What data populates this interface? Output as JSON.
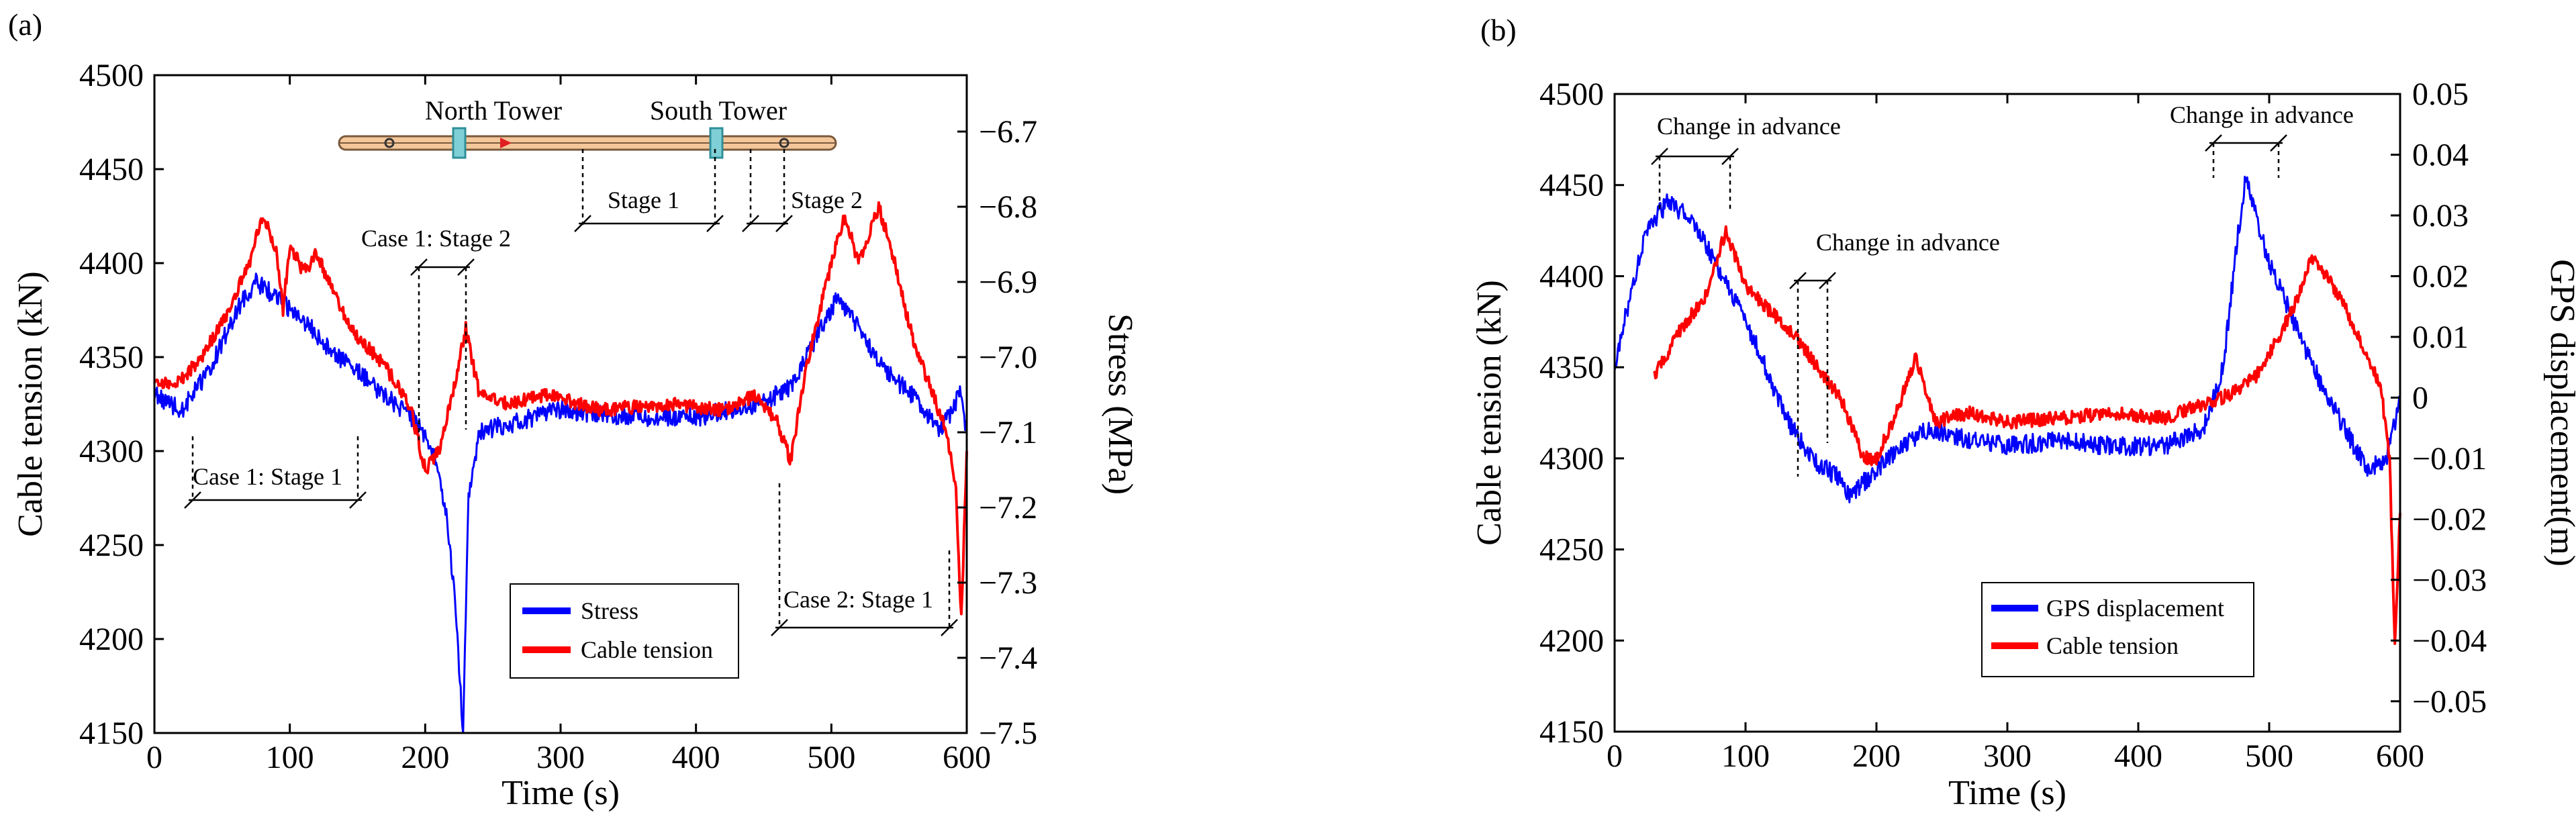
{
  "panels": [
    {
      "id": "a",
      "panel_label": "(a)",
      "xlabel": "Time (s)",
      "ylabel_left": "Cable tension (kN)",
      "ylabel_right": "Stress (MPa)",
      "xlim": [
        0,
        600
      ],
      "ylim_left": [
        4150,
        4500
      ],
      "ylim_right": [
        -7.5,
        -6.625
      ],
      "x_ticks": [
        0,
        100,
        200,
        300,
        400,
        500,
        600
      ],
      "y_ticks_left": [
        4150,
        4200,
        4250,
        4300,
        4350,
        4400,
        4450,
        4500
      ],
      "y_ticks_right": [
        "−6.7",
        "−6.8",
        "−6.9",
        "−7.0",
        "−7.1",
        "−7.2",
        "−7.3",
        "−7.4",
        "−7.5"
      ],
      "legend": [
        "Stress",
        "Cable tension"
      ],
      "legend_position": "bottom-center",
      "inset": {
        "north_label": "North Tower",
        "south_label": "South Tower"
      },
      "annotations": [
        "Case 1: Stage 2",
        "Stage 1",
        "Stage 2",
        "Case 1: Stage 1",
        "Case 2: Stage 1"
      ]
    },
    {
      "id": "b",
      "panel_label": "(b)",
      "xlabel": "Time (s)",
      "ylabel_left": "Cable tension (kN)",
      "ylabel_right": "GPS displacement(m)",
      "xlim": [
        0,
        600
      ],
      "ylim_left": [
        4150,
        4500
      ],
      "ylim_right": [
        -0.055,
        0.05
      ],
      "x_ticks": [
        0,
        100,
        200,
        300,
        400,
        500,
        600
      ],
      "y_ticks_left": [
        4150,
        4200,
        4250,
        4300,
        4350,
        4400,
        4450,
        4500
      ],
      "y_ticks_right": [
        "0.05",
        "0.04",
        "0.03",
        "0.02",
        "0.01",
        "0",
        "−0.01",
        "−0.02",
        "−0.03",
        "−0.04",
        "−0.05"
      ],
      "legend": [
        "GPS displacement",
        "Cable tension"
      ],
      "legend_position": "bottom-center",
      "annotations": [
        "Change in advance",
        "Change in advance",
        "Change in advance"
      ]
    }
  ],
  "chart_data": [
    {
      "type": "line",
      "x_unit": "s",
      "xlim": [
        0,
        600
      ],
      "ylim": [
        4150,
        4500
      ],
      "y2lim": [
        -7.5,
        -6.625
      ],
      "series": [
        {
          "name": "Stress",
          "color": "#0000ff",
          "axis": "right",
          "x": [
            0,
            20,
            40,
            60,
            75,
            90,
            110,
            130,
            150,
            170,
            190,
            205,
            215,
            222,
            228,
            232,
            240,
            260,
            300,
            350,
            400,
            450,
            470,
            490,
            505,
            520,
            540,
            560,
            580,
            595,
            600
          ],
          "y": [
            -7.05,
            -7.07,
            -7.02,
            -6.94,
            -6.9,
            -6.92,
            -6.95,
            -6.99,
            -7.02,
            -7.05,
            -7.08,
            -7.12,
            -7.2,
            -7.32,
            -7.5,
            -7.18,
            -7.1,
            -7.09,
            -7.07,
            -7.08,
            -7.08,
            -7.06,
            -7.04,
            -6.97,
            -6.92,
            -6.96,
            -7.02,
            -7.05,
            -7.1,
            -7.05,
            -7.1
          ]
        },
        {
          "name": "Cable tension",
          "color": "#ff0000",
          "axis": "left",
          "x": [
            0,
            20,
            35,
            55,
            70,
            80,
            90,
            95,
            100,
            110,
            120,
            135,
            150,
            165,
            180,
            190,
            200,
            210,
            220,
            230,
            240,
            260,
            290,
            330,
            380,
            420,
            445,
            460,
            470,
            480,
            500,
            510,
            520,
            535,
            545,
            560,
            575,
            585,
            592,
            596,
            600
          ],
          "y": [
            4335,
            4338,
            4350,
            4375,
            4400,
            4425,
            4408,
            4375,
            4410,
            4395,
            4405,
            4380,
            4360,
            4350,
            4335,
            4320,
            4290,
            4300,
            4330,
            4365,
            4330,
            4325,
            4330,
            4322,
            4325,
            4322,
            4330,
            4315,
            4295,
            4340,
            4400,
            4425,
            4400,
            4430,
            4405,
            4360,
            4330,
            4310,
            4280,
            4210,
            4300
          ]
        }
      ]
    },
    {
      "type": "line",
      "x_unit": "s",
      "xlim": [
        0,
        600
      ],
      "ylim": [
        4150,
        4500
      ],
      "y2lim": [
        -0.055,
        0.05
      ],
      "series": [
        {
          "name": "GPS displacement",
          "color": "#0000ff",
          "axis": "right",
          "x": [
            0,
            10,
            25,
            40,
            55,
            70,
            90,
            110,
            130,
            150,
            170,
            180,
            200,
            220,
            240,
            270,
            300,
            340,
            380,
            420,
            450,
            465,
            475,
            482,
            490,
            500,
            520,
            540,
            560,
            575,
            590,
            600
          ],
          "y": [
            0.005,
            0.015,
            0.028,
            0.032,
            0.03,
            0.025,
            0.017,
            0.008,
            -0.003,
            -0.01,
            -0.013,
            -0.016,
            -0.012,
            -0.008,
            -0.005,
            -0.007,
            -0.008,
            -0.007,
            -0.008,
            -0.008,
            -0.005,
            0.005,
            0.025,
            0.036,
            0.03,
            0.022,
            0.012,
            0.002,
            -0.006,
            -0.012,
            -0.01,
            0.0
          ]
        },
        {
          "name": "Cable tension",
          "color": "#ff0000",
          "axis": "left",
          "x": [
            30,
            50,
            70,
            85,
            100,
            120,
            140,
            160,
            175,
            190,
            200,
            215,
            230,
            245,
            270,
            300,
            340,
            380,
            420,
            450,
            470,
            490,
            510,
            520,
            532,
            545,
            560,
            575,
            585,
            592,
            596,
            600
          ],
          "y": [
            4345,
            4370,
            4390,
            4425,
            4395,
            4380,
            4365,
            4345,
            4330,
            4300,
            4300,
            4325,
            4355,
            4320,
            4325,
            4320,
            4322,
            4325,
            4322,
            4330,
            4335,
            4345,
            4370,
            4385,
            4410,
            4400,
            4380,
            4355,
            4340,
            4300,
            4195,
            4270
          ]
        }
      ]
    }
  ]
}
